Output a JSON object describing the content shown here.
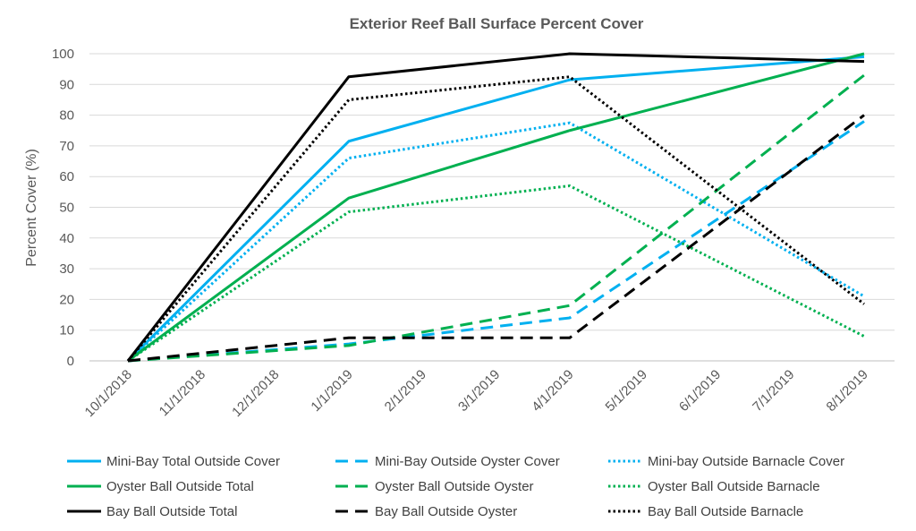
{
  "chart_data": {
    "type": "line",
    "title": "Exterior Reef Ball Surface Percent Cover",
    "xlabel": "",
    "ylabel": "Percent Cover (%)",
    "ylim": [
      0,
      100
    ],
    "yticks": [
      0,
      10,
      20,
      30,
      40,
      50,
      60,
      70,
      80,
      90,
      100
    ],
    "x_tick_labels": [
      "10/1/2018",
      "11/1/2018",
      "12/1/2018",
      "1/1/2019",
      "2/1/2019",
      "3/1/2019",
      "4/1/2019",
      "5/1/2019",
      "6/1/2019",
      "7/1/2019",
      "8/1/2019"
    ],
    "x": [
      "10/1/2018",
      "1/1/2019",
      "4/1/2019",
      "8/1/2019"
    ],
    "x_month_index": [
      0,
      3,
      6,
      10
    ],
    "grid": "horizontal",
    "legend_position": "bottom",
    "series": [
      {
        "name": "Mini-Bay Total Outside Cover",
        "color": "#00B0F0",
        "style": "solid",
        "values": [
          0,
          71.5,
          91.5,
          99
        ]
      },
      {
        "name": "Mini-Bay Outside Oyster Cover",
        "color": "#00B0F0",
        "style": "dashed",
        "values": [
          0,
          5.5,
          14,
          78
        ]
      },
      {
        "name": "Mini-bay Outside Barnacle Cover",
        "color": "#00B0F0",
        "style": "dotted",
        "values": [
          0,
          66,
          77.5,
          21
        ]
      },
      {
        "name": "Oyster Ball Outside Total",
        "color": "#00B050",
        "style": "solid",
        "values": [
          0,
          53,
          75,
          100
        ]
      },
      {
        "name": "Oyster Ball Outside Oyster",
        "color": "#00B050",
        "style": "dashed",
        "values": [
          0,
          5,
          18,
          93
        ]
      },
      {
        "name": "Oyster Ball Outside Barnacle",
        "color": "#00B050",
        "style": "dotted",
        "values": [
          0,
          48.5,
          57,
          8
        ]
      },
      {
        "name": "Bay Ball Outside Total",
        "color": "#000000",
        "style": "solid",
        "values": [
          0,
          92.5,
          100,
          97.5
        ]
      },
      {
        "name": "Bay Ball Outside Oyster",
        "color": "#000000",
        "style": "dashed",
        "values": [
          0,
          7.5,
          7.5,
          80
        ]
      },
      {
        "name": "Bay Ball Outside Barnacle",
        "color": "#000000",
        "style": "dotted",
        "values": [
          0,
          85,
          92.5,
          18.5
        ]
      }
    ]
  }
}
